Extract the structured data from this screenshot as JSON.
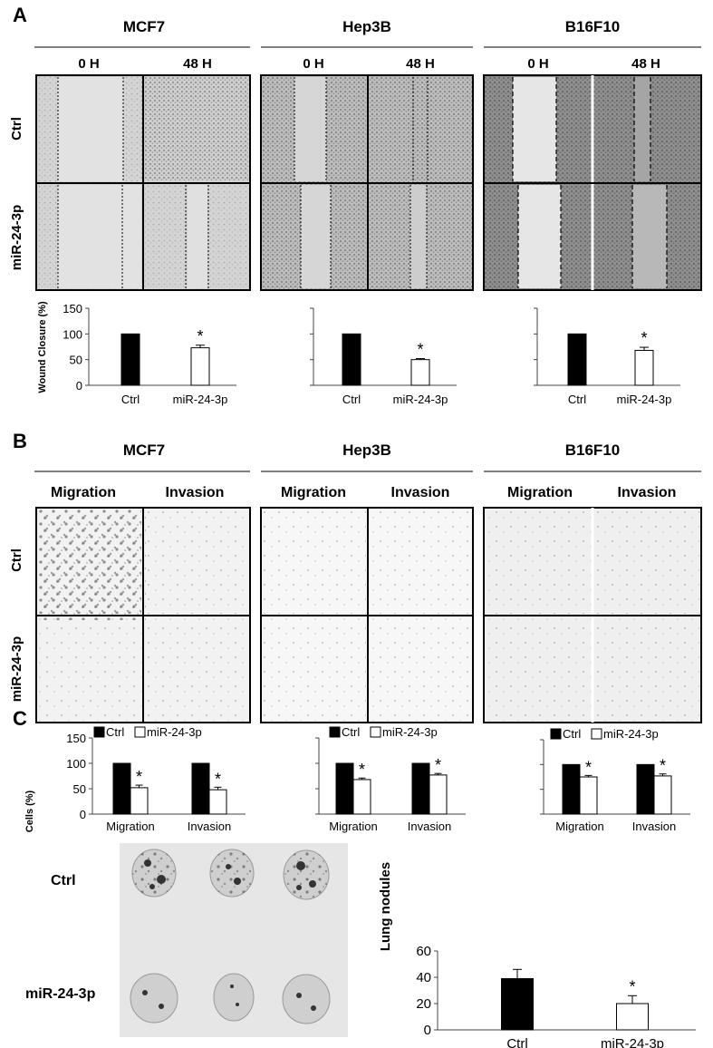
{
  "panel_a": {
    "letter": "A",
    "time_labels": [
      "0 H",
      "48 H"
    ],
    "row_labels": [
      "Ctrl",
      "miR-24-3p"
    ],
    "cell_lines": [
      "MCF7",
      "Hep3B",
      "B16F10"
    ]
  },
  "panel_b": {
    "letter": "B",
    "cell_lines": [
      "MCF7",
      "Hep3B",
      "B16F10"
    ],
    "col_labels": [
      "Migration",
      "Invasion"
    ],
    "row_labels": [
      "Ctrl",
      "miR-24-3p"
    ]
  },
  "panel_c": {
    "letter": "C",
    "row_labels": [
      "Ctrl",
      "miR-24-3p"
    ]
  },
  "colors": {
    "ctrl": "#000000",
    "mir": "#ffffff",
    "axis": "#444444"
  },
  "chart_data": [
    {
      "id": "wound-mcf7",
      "type": "bar",
      "ylabel": "Wound Closure (%)",
      "ylim": [
        0,
        150
      ],
      "yticks": [
        0,
        50,
        100,
        150
      ],
      "categories": [
        "Ctrl",
        "miR-24-3p"
      ],
      "values": [
        100,
        73
      ],
      "errors": [
        0,
        5
      ],
      "annotations": [
        {
          "category": "miR-24-3p",
          "text": "*"
        }
      ]
    },
    {
      "id": "wound-hep3b",
      "type": "bar",
      "ylim": [
        0,
        150
      ],
      "categories": [
        "Ctrl",
        "miR-24-3p"
      ],
      "values": [
        100,
        50
      ],
      "errors": [
        0,
        2
      ],
      "annotations": [
        {
          "category": "miR-24-3p",
          "text": "*"
        }
      ]
    },
    {
      "id": "wound-b16f10",
      "type": "bar",
      "ylim": [
        0,
        150
      ],
      "categories": [
        "Ctrl",
        "miR-24-3p"
      ],
      "values": [
        100,
        68
      ],
      "errors": [
        0,
        6
      ],
      "annotations": [
        {
          "category": "miR-24-3p",
          "text": "*"
        }
      ]
    },
    {
      "id": "cells-mcf7",
      "type": "bar",
      "ylabel": "Cells (%)",
      "ylim": [
        0,
        150
      ],
      "yticks": [
        0,
        50,
        100,
        150
      ],
      "categories": [
        "Migration",
        "Invasion"
      ],
      "series": [
        {
          "name": "Ctrl",
          "values": [
            100,
            100
          ],
          "errors": [
            0,
            0
          ]
        },
        {
          "name": "miR-24-3p",
          "values": [
            52,
            48
          ],
          "errors": [
            5,
            5
          ]
        }
      ],
      "annotations": [
        {
          "category": "Migration",
          "text": "*"
        },
        {
          "category": "Invasion",
          "text": "*"
        }
      ]
    },
    {
      "id": "cells-hep3b",
      "type": "bar",
      "ylim": [
        0,
        150
      ],
      "categories": [
        "Migration",
        "Invasion"
      ],
      "series": [
        {
          "name": "Ctrl",
          "values": [
            100,
            100
          ],
          "errors": [
            0,
            0
          ]
        },
        {
          "name": "miR-24-3p",
          "values": [
            68,
            77
          ],
          "errors": [
            3,
            3
          ]
        }
      ],
      "annotations": [
        {
          "category": "Migration",
          "text": "*"
        },
        {
          "category": "Invasion",
          "text": "*"
        }
      ]
    },
    {
      "id": "cells-b16f10",
      "type": "bar",
      "ylim": [
        0,
        150
      ],
      "categories": [
        "Migration",
        "Invasion"
      ],
      "series": [
        {
          "name": "Ctrl",
          "values": [
            100,
            100
          ],
          "errors": [
            0,
            0
          ]
        },
        {
          "name": "miR-24-3p",
          "values": [
            75,
            77
          ],
          "errors": [
            3,
            4
          ]
        }
      ],
      "annotations": [
        {
          "category": "Migration",
          "text": "*"
        },
        {
          "category": "Invasion",
          "text": "*"
        }
      ]
    },
    {
      "id": "lung-nodules",
      "type": "bar",
      "ylabel": "Lung nodules",
      "ylim": [
        0,
        60
      ],
      "yticks": [
        0,
        20,
        40,
        60
      ],
      "categories": [
        "Ctrl",
        "miR-24-3p"
      ],
      "values": [
        39,
        20
      ],
      "errors": [
        7,
        6
      ],
      "annotations": [
        {
          "category": "miR-24-3p",
          "text": "*"
        }
      ]
    }
  ]
}
